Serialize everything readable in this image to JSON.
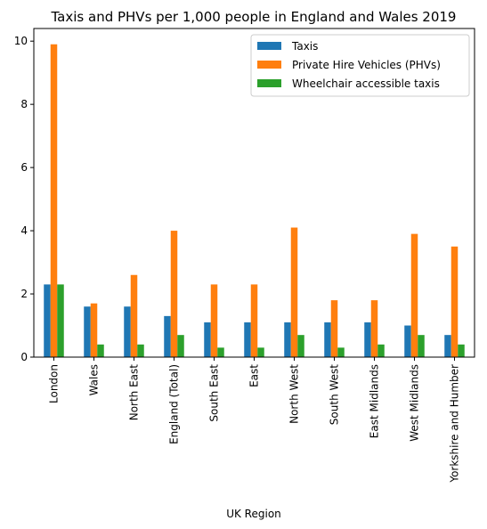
{
  "chart_data": {
    "type": "bar",
    "title": "Taxis and PHVs per 1,000 people in England and Wales 2019",
    "xlabel": "UK Region",
    "ylabel": "",
    "ylim": [
      0,
      10.4
    ],
    "yticks": [
      0,
      2,
      4,
      6,
      8,
      10
    ],
    "grid": false,
    "legend_position": "top-right",
    "categories": [
      "London",
      "Wales",
      "North East",
      "England (Total)",
      "South East",
      "East",
      "North West",
      "South West",
      "East Midlands",
      "West Midlands",
      "Yorkshire and Humber"
    ],
    "series": [
      {
        "name": "Taxis",
        "color": "#1f77b4",
        "values": [
          2.3,
          1.6,
          1.6,
          1.3,
          1.1,
          1.1,
          1.1,
          1.1,
          1.1,
          1.0,
          0.7
        ]
      },
      {
        "name": "Private Hire Vehicles (PHVs)",
        "color": "#ff7f0e",
        "values": [
          9.9,
          1.7,
          2.6,
          4.0,
          2.3,
          2.3,
          4.1,
          1.8,
          1.8,
          3.9,
          3.5
        ]
      },
      {
        "name": "Wheelchair accessible taxis",
        "color": "#2ca02c",
        "values": [
          2.3,
          0.4,
          0.4,
          0.7,
          0.3,
          0.3,
          0.7,
          0.3,
          0.4,
          0.7,
          0.4
        ]
      }
    ]
  }
}
